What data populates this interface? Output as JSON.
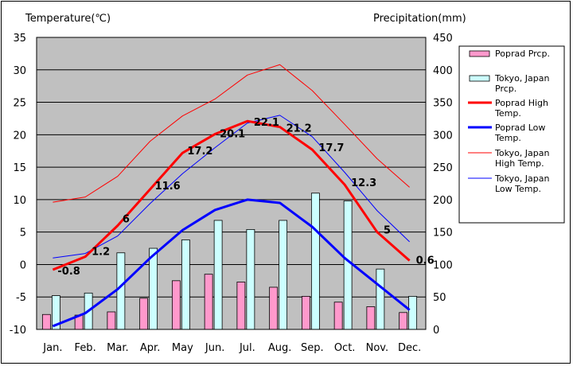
{
  "chart_data": {
    "type": "bar+line",
    "left_axis_title": "Temperature(℃)",
    "right_axis_title": "Precipitation(mm)",
    "left_ylim": [
      -10,
      35
    ],
    "right_ylim": [
      0,
      450
    ],
    "left_ticks": [
      35,
      30,
      25,
      20,
      15,
      10,
      5,
      0,
      -5,
      -10
    ],
    "right_ticks": [
      450,
      400,
      350,
      300,
      250,
      200,
      150,
      100,
      50,
      0
    ],
    "grid": true,
    "legend_position": "right",
    "categories": [
      "Jan.",
      "Feb.",
      "Mar.",
      "Apr.",
      "May",
      "Jun.",
      "Jul.",
      "Aug.",
      "Sep.",
      "Oct.",
      "Nov.",
      "Dec."
    ],
    "bar_series": [
      {
        "name": "Poprad Prcp.",
        "color": "#ff99cc",
        "values": [
          23,
          22,
          27,
          48,
          75,
          85,
          73,
          65,
          51,
          42,
          35,
          26
        ]
      },
      {
        "name": "Tokyo, Japan Prcp.",
        "color": "#ccffff",
        "values": [
          52,
          56,
          118,
          125,
          138,
          168,
          154,
          168,
          210,
          198,
          93,
          51
        ]
      }
    ],
    "line_series": [
      {
        "name": "Poprad High Temp.",
        "color": "#ff0000",
        "width": 3,
        "values": [
          -0.8,
          1.2,
          6,
          11.6,
          17.2,
          20.1,
          22.1,
          21.2,
          17.7,
          12.3,
          5,
          0.6
        ],
        "labels": [
          "-0.8",
          "1.2",
          "6",
          "11.6",
          "17.2",
          "20.1",
          "22.1",
          "21.2",
          "17.7",
          "12.3",
          "5",
          "0.6"
        ]
      },
      {
        "name": "Poprad Low Temp.",
        "color": "#0000ff",
        "width": 3,
        "values": [
          -9.5,
          -7.5,
          -3.8,
          1,
          5.3,
          8.4,
          10,
          9.5,
          5.8,
          1,
          -3,
          -7
        ]
      },
      {
        "name": "Tokyo, Japan High Temp.",
        "color": "#ff0000",
        "width": 1,
        "values": [
          9.6,
          10.4,
          13.6,
          19,
          22.9,
          25.5,
          29.2,
          30.8,
          26.8,
          21.6,
          16.3,
          11.9
        ]
      },
      {
        "name": "Tokyo, Japan Low Temp.",
        "color": "#0000ff",
        "width": 1,
        "values": [
          1,
          1.7,
          4.4,
          9.4,
          14,
          18,
          21.8,
          23,
          19.7,
          14.2,
          8.3,
          3.5
        ]
      }
    ],
    "legend": [
      {
        "kind": "bar",
        "color": "#ff99cc",
        "lines": [
          "Poprad Prcp."
        ]
      },
      {
        "kind": "bar",
        "color": "#ccffff",
        "lines": [
          "Tokyo, Japan",
          "Prcp."
        ]
      },
      {
        "kind": "line",
        "color": "#ff0000",
        "width": 3,
        "lines": [
          "Poprad High",
          "Temp."
        ]
      },
      {
        "kind": "line",
        "color": "#0000ff",
        "width": 3,
        "lines": [
          "Poprad Low",
          "Temp."
        ]
      },
      {
        "kind": "line",
        "color": "#ff0000",
        "width": 1,
        "lines": [
          "Tokyo, Japan",
          "High Temp."
        ]
      },
      {
        "kind": "line",
        "color": "#0000ff",
        "width": 1,
        "lines": [
          "Tokyo, Japan",
          "Low Temp."
        ]
      }
    ],
    "plot_background": "#c0c0c0"
  }
}
